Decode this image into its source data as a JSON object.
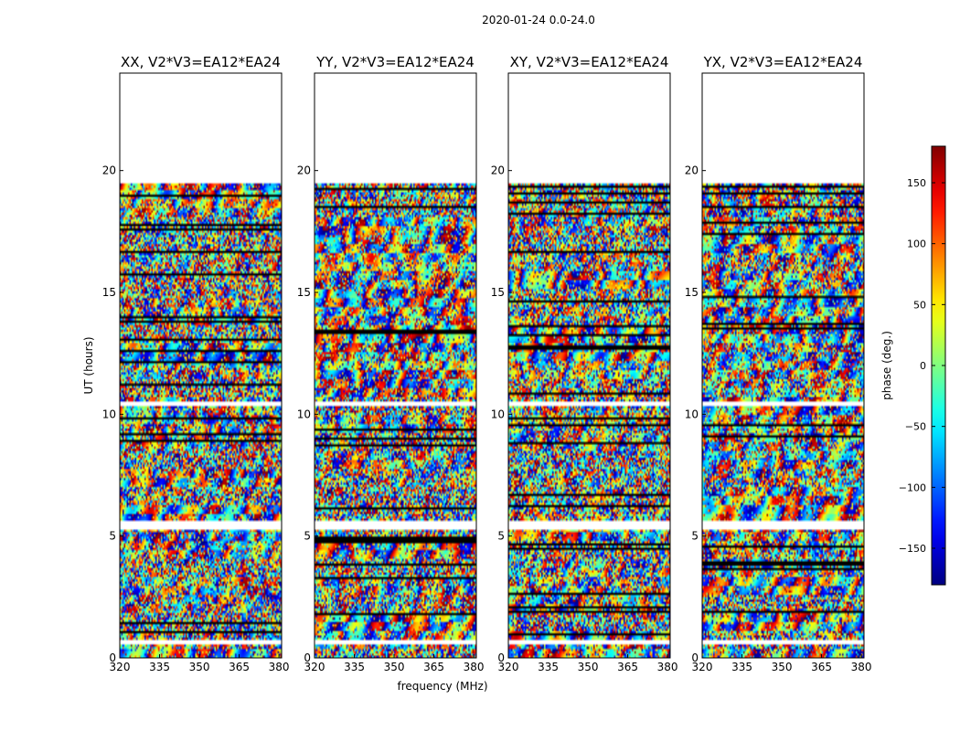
{
  "figure": {
    "suptitle": "2020-01-24 0.0-24.0",
    "xlabel": "frequency (MHz)",
    "ylabel": "UT (hours)"
  },
  "chart_data": {
    "type": "heatmap",
    "title": "2020-01-24 0.0-24.0",
    "xlabel": "frequency (MHz)",
    "ylabel": "UT (hours)",
    "xlim": [
      320,
      381
    ],
    "ylim": [
      0,
      24
    ],
    "xticks": [
      320,
      335,
      350,
      365,
      380
    ],
    "yticks": [
      0,
      5,
      10,
      15,
      20
    ],
    "colormap": "jet",
    "colorbar": {
      "label": "phase (deg.)",
      "range": [
        -180,
        180
      ],
      "ticks": [
        -150,
        -100,
        -50,
        0,
        50,
        100,
        150
      ],
      "tick_labels": [
        "−150",
        "−100",
        "−50",
        "0",
        "50",
        "100",
        "150"
      ]
    },
    "data_time_range_hours": [
      0.0,
      19.5
    ],
    "empty_time_bands_hours": [
      [
        0.55,
        0.7
      ],
      [
        5.25,
        5.6
      ],
      [
        10.35,
        10.5
      ],
      [
        19.5,
        24.0
      ]
    ],
    "panels": [
      {
        "title": "XX, V2*V3=EA12*EA24",
        "polarization": "XX"
      },
      {
        "title": "YY, V2*V3=EA12*EA24",
        "polarization": "YY"
      },
      {
        "title": "XY, V2*V3=EA12*EA24",
        "polarization": "XY"
      },
      {
        "title": "YX, V2*V3=EA12*EA24",
        "polarization": "YX"
      }
    ]
  }
}
